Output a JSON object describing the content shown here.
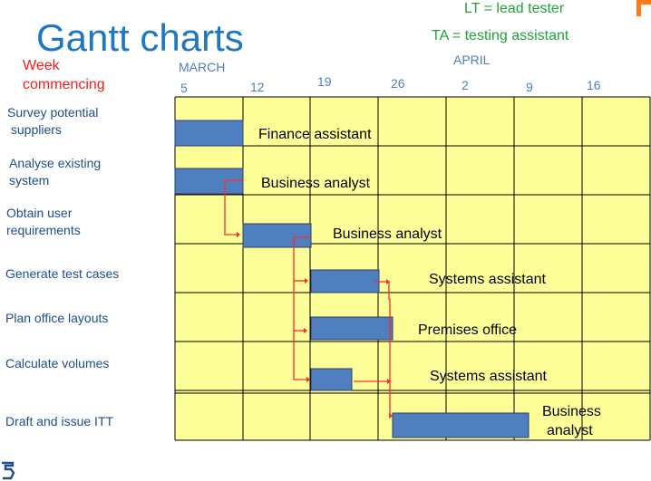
{
  "title": "Gantt charts",
  "legend": {
    "lt": "LT = lead tester",
    "ta": "TA = testing assistant"
  },
  "week_label": [
    "Week",
    "commencing"
  ],
  "months": {
    "march": "MARCH",
    "april": "APRIL"
  },
  "dates": [
    "5",
    "12",
    "19",
    "26",
    "2",
    "9",
    "16"
  ],
  "tasks": [
    {
      "name": "Survey potential suppliers",
      "lines": [
        "Survey potential",
        " suppliers"
      ],
      "start_week": 0,
      "duration_weeks": 1,
      "resource": "Finance assistant"
    },
    {
      "name": "Analyse existing system",
      "lines": [
        "Analyse existing",
        "system"
      ],
      "start_week": 0,
      "duration_weeks": 1,
      "resource": "Business analyst"
    },
    {
      "name": "Obtain user requirements",
      "lines": [
        "Obtain user",
        "requirements"
      ],
      "start_week": 1,
      "duration_weeks": 1,
      "resource": "Business analyst"
    },
    {
      "name": "Generate test cases",
      "lines": [
        "Generate test cases"
      ],
      "start_week": 2,
      "duration_weeks": 1,
      "resource": "Systems assistant"
    },
    {
      "name": "Plan office layouts",
      "lines": [
        "Plan office layouts"
      ],
      "start_week": 2,
      "duration_weeks": 1.2,
      "resource": "Premises office"
    },
    {
      "name": "Calculate volumes",
      "lines": [
        "Calculate volumes"
      ],
      "start_week": 2,
      "duration_weeks": 0.6,
      "resource": "Systems assistant"
    },
    {
      "name": "Draft and issue ITT",
      "lines": [
        "Draft and issue ITT"
      ],
      "start_week": 3.2,
      "duration_weeks": 2,
      "resource": "Business analyst"
    }
  ],
  "colors": {
    "grid_fill": "#ffff99",
    "bar": "#4f7fbf",
    "dependency": "#ff2a2a",
    "title": "#1f77c4",
    "legend": "#21a33a",
    "week_label": "#ff1a1a"
  }
}
